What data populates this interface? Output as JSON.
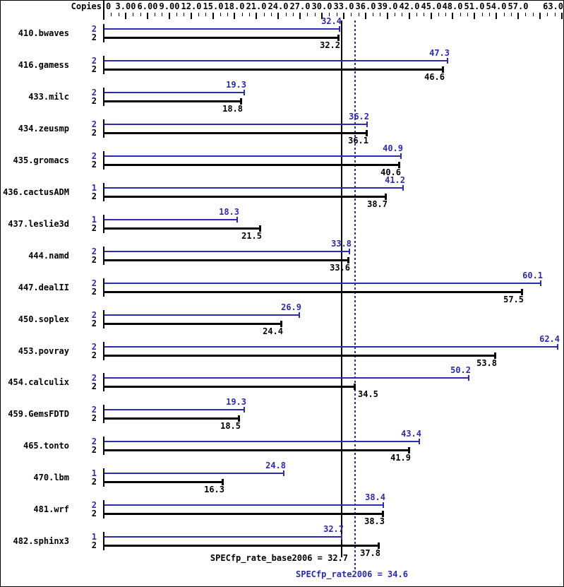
{
  "colors": {
    "peak": "#2b2bb0",
    "base": "#000000",
    "background": "#ffffff"
  },
  "chart_data": {
    "type": "bar",
    "orientation": "horizontal",
    "copies_header": "Copies",
    "x_axis": {
      "min": 0,
      "max": 63,
      "major_tick_interval": 3,
      "minor_tick_interval": 1,
      "tick_label_values": [
        0,
        3,
        6,
        9,
        12,
        15,
        18,
        21,
        24,
        27,
        30,
        33,
        36,
        39,
        42,
        45,
        48,
        51,
        54,
        57,
        63
      ],
      "tick_labels": [
        "0",
        "3.00",
        "6.00",
        "9.00",
        "12.0",
        "15.0",
        "18.0",
        "21.0",
        "24.0",
        "27.0",
        "30.0",
        "33.0",
        "36.0",
        "39.0",
        "42.0",
        "45.0",
        "48.0",
        "51.0",
        "54.0",
        "57.0",
        "63.0"
      ]
    },
    "series_meta": {
      "peak": {
        "color": "#2b2bb0",
        "style": "solid"
      },
      "base": {
        "color": "#000000",
        "style": "solid"
      }
    },
    "benchmarks": [
      {
        "name": "410.bwaves",
        "peak_copies": "2",
        "peak": 32.4,
        "base_copies": "2",
        "base": 32.2
      },
      {
        "name": "416.gamess",
        "peak_copies": "2",
        "peak": 47.3,
        "base_copies": "2",
        "base": 46.6
      },
      {
        "name": "433.milc",
        "peak_copies": "2",
        "peak": 19.3,
        "base_copies": "2",
        "base": 18.8
      },
      {
        "name": "434.zeusmp",
        "peak_copies": "2",
        "peak": 36.2,
        "base_copies": "2",
        "base": 36.1
      },
      {
        "name": "435.gromacs",
        "peak_copies": "2",
        "peak": 40.9,
        "base_copies": "2",
        "base": 40.6
      },
      {
        "name": "436.cactusADM",
        "peak_copies": "1",
        "peak": 41.2,
        "base_copies": "2",
        "base": 38.7
      },
      {
        "name": "437.leslie3d",
        "peak_copies": "1",
        "peak": 18.3,
        "base_copies": "2",
        "base": 21.5
      },
      {
        "name": "444.namd",
        "peak_copies": "2",
        "peak": 33.8,
        "base_copies": "2",
        "base": 33.6
      },
      {
        "name": "447.dealII",
        "peak_copies": "2",
        "peak": 60.1,
        "base_copies": "2",
        "base": 57.5
      },
      {
        "name": "450.soplex",
        "peak_copies": "2",
        "peak": 26.9,
        "base_copies": "2",
        "base": 24.4
      },
      {
        "name": "453.povray",
        "peak_copies": "2",
        "peak": 62.4,
        "base_copies": "2",
        "base": 53.8
      },
      {
        "name": "454.calculix",
        "peak_copies": "2",
        "peak": 50.2,
        "base_copies": "2",
        "base": 34.5,
        "base_label_after_bar": true
      },
      {
        "name": "459.GemsFDTD",
        "peak_copies": "2",
        "peak": 19.3,
        "base_copies": "2",
        "base": 18.5
      },
      {
        "name": "465.tonto",
        "peak_copies": "2",
        "peak": 43.4,
        "base_copies": "2",
        "base": 41.9
      },
      {
        "name": "470.lbm",
        "peak_copies": "1",
        "peak": 24.8,
        "base_copies": "2",
        "base": 16.3
      },
      {
        "name": "481.wrf",
        "peak_copies": "2",
        "peak": 38.4,
        "base_copies": "2",
        "base": 38.3
      },
      {
        "name": "482.sphinx3",
        "peak_copies": "1",
        "peak": 32.7,
        "base_copies": "2",
        "base": 37.8
      }
    ],
    "reference_lines": [
      {
        "name": "base",
        "label": "SPECfp_rate_base2006 = 32.7",
        "value": 32.7,
        "style": "solid",
        "color": "#000000"
      },
      {
        "name": "peak",
        "label": "SPECfp_rate2006 = 34.6",
        "value": 34.6,
        "style": "dotted",
        "color": "#2b2bb0"
      }
    ]
  }
}
